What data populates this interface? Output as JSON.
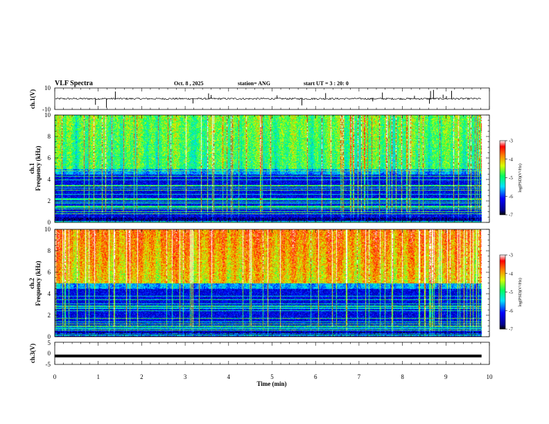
{
  "header": {
    "title": "VLF Spectra",
    "date": "Oct. 8 , 2025",
    "station": "station= ANG",
    "start": "start UT = 3 : 20: 0"
  },
  "chart_data": [
    {
      "type": "line",
      "ylabel": "ch.1(V)",
      "ylim": [
        -10,
        10
      ],
      "yticks": [
        "10",
        "-10"
      ],
      "xlim": [
        0,
        10
      ],
      "baseline_level": 0
    },
    {
      "type": "heatmap",
      "ylabel": "ch.1",
      "ylabel2": "Frequency (kHz)",
      "xlim": [
        0,
        10
      ],
      "ylim": [
        0,
        10
      ],
      "yticks": [
        "0",
        "2",
        "4",
        "6",
        "8",
        "10"
      ],
      "colorbar": {
        "range": [
          -7,
          -3
        ],
        "ticks": [
          "-3",
          "-4",
          "-5",
          "-6",
          "-7"
        ],
        "label": "log(PSD)(V²/Hz)"
      },
      "data_end_min": 9.82
    },
    {
      "type": "heatmap",
      "ylabel": "ch.2",
      "ylabel2": "Frequency (kHz)",
      "xlim": [
        0,
        10
      ],
      "ylim": [
        0,
        10
      ],
      "yticks": [
        "0",
        "2",
        "4",
        "6",
        "8",
        "10"
      ],
      "colorbar": {
        "range": [
          -7,
          -3
        ],
        "ticks": [
          "-3",
          "-4",
          "-5",
          "-6",
          "-7"
        ],
        "label": "log(PSD)(V²/Hz)"
      },
      "data_end_min": 9.82
    },
    {
      "type": "line",
      "ylabel": "ch.3(V)",
      "ylim": [
        -5,
        5
      ],
      "yticks": [
        "5",
        "0",
        "-5"
      ],
      "xlim": [
        0,
        10
      ],
      "xlabel": "Time (min)",
      "xticks": [
        "0",
        "1",
        "2",
        "3",
        "4",
        "5",
        "6",
        "7",
        "8",
        "9",
        "10"
      ],
      "baseline_level": -1.2
    }
  ]
}
